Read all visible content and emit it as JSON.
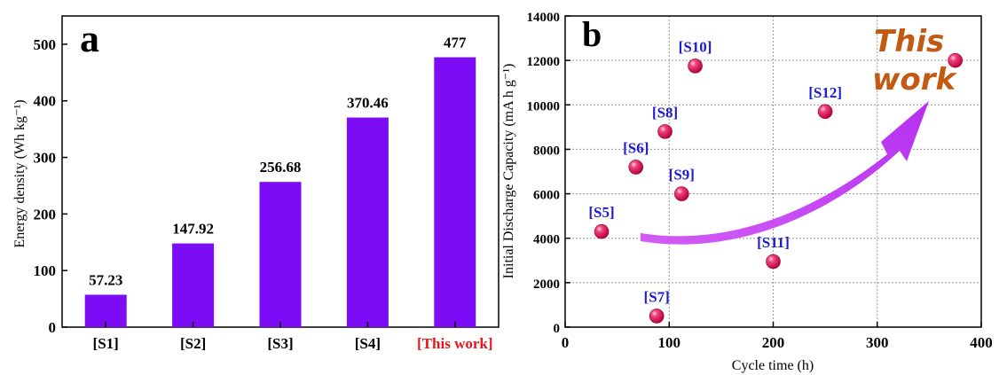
{
  "chart_data": [
    {
      "panel_label": "a",
      "type": "bar",
      "categories": [
        "[S1]",
        "[S2]",
        "[S3]",
        "[S4]",
        "[This work]"
      ],
      "values": [
        57.23,
        147.92,
        256.68,
        370.46,
        477
      ],
      "value_labels": [
        "57.23",
        "147.92",
        "256.68",
        "370.46",
        "477"
      ],
      "highlight_category_index": 4,
      "highlight_color": "#e8151b",
      "bar_color": "#7b0cf5",
      "ylabel": "Energy density (Wh kg⁻¹)",
      "xlabel": "",
      "ylim": [
        0,
        550
      ],
      "yticks": [
        "0",
        "100",
        "200",
        "300",
        "400",
        "500"
      ],
      "grid": false
    },
    {
      "panel_label": "b",
      "type": "scatter",
      "points": [
        {
          "label": "[S5]",
          "x": 35,
          "y": 4300
        },
        {
          "label": "[S6]",
          "x": 68,
          "y": 7200
        },
        {
          "label": "[S7]",
          "x": 88,
          "y": 500
        },
        {
          "label": "[S8]",
          "x": 96,
          "y": 8800
        },
        {
          "label": "[S9]",
          "x": 112,
          "y": 6000
        },
        {
          "label": "[S10]",
          "x": 125,
          "y": 11750
        },
        {
          "label": "[S11]",
          "x": 200,
          "y": 2950
        },
        {
          "label": "[S12]",
          "x": 250,
          "y": 9700
        },
        {
          "label": "",
          "x": 375,
          "y": 12000
        }
      ],
      "annotation": {
        "line1": "This",
        "line2": "work"
      },
      "point_color": "#e8175d",
      "label_color": "#1c1cd4",
      "annotation_color": "#c25a14",
      "arrow_color": "#c03bf0",
      "xlabel": "Cycle time (h)",
      "ylabel": "Initial Discharge Capacity (mA h g⁻¹)",
      "xlim": [
        0,
        400
      ],
      "ylim": [
        0,
        14000
      ],
      "xticks": [
        "0",
        "100",
        "200",
        "300",
        "400"
      ],
      "yticks": [
        "0",
        "2000",
        "4000",
        "6000",
        "8000",
        "10000",
        "12000",
        "14000"
      ],
      "grid": true
    }
  ]
}
